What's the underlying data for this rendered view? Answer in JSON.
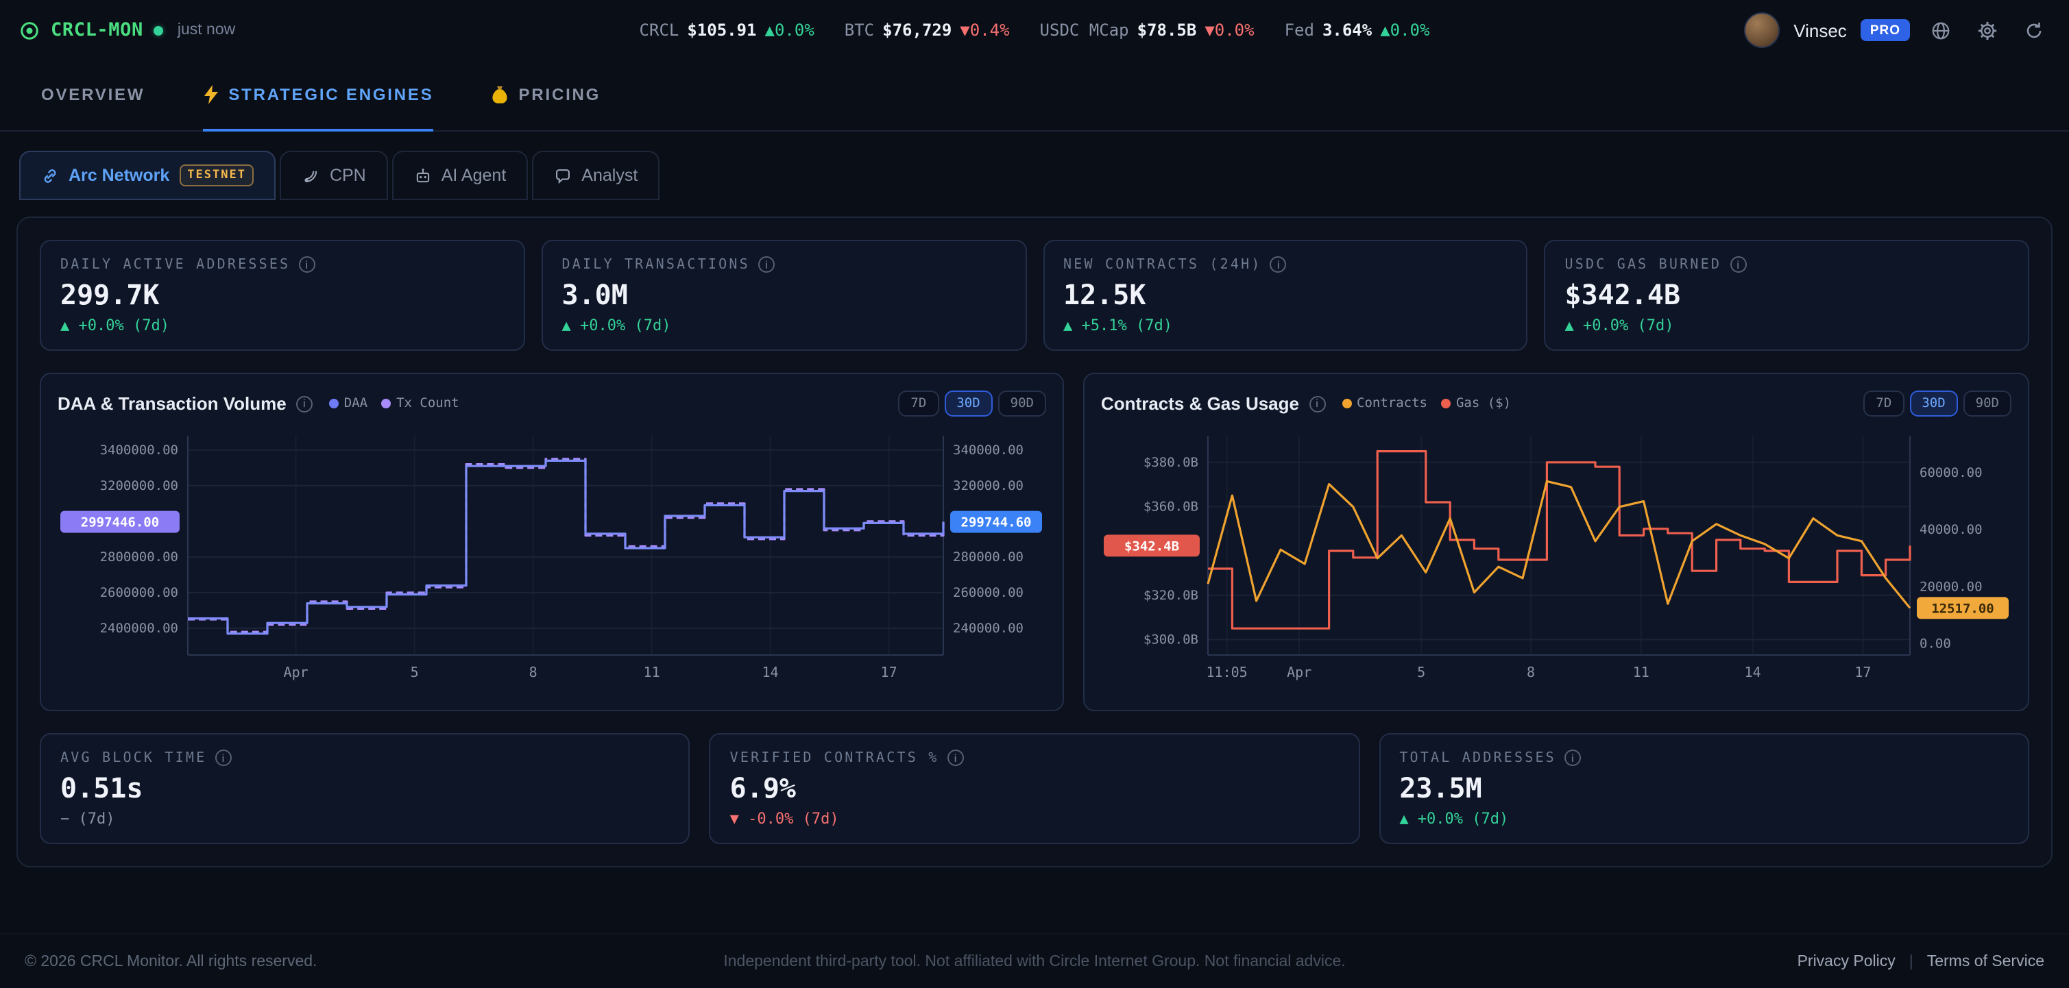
{
  "header": {
    "app_name": "CRCL-MON",
    "status": "just now",
    "user": {
      "name": "Vinsec",
      "badge": "PRO"
    },
    "ticker": [
      {
        "label": "CRCL",
        "value": "$105.91",
        "change": "▲0.0%",
        "dir": "up"
      },
      {
        "label": "BTC",
        "value": "$76,729",
        "change": "▼0.4%",
        "dir": "down"
      },
      {
        "label": "USDC MCap",
        "value": "$78.5B",
        "change": "▼0.0%",
        "dir": "down"
      },
      {
        "label": "Fed",
        "value": "3.64%",
        "change": "▲0.0%",
        "dir": "up"
      }
    ]
  },
  "icons": {
    "logo": "circle-dot",
    "live": "green-dot",
    "strategic": "lightning-bolt",
    "pricing": "money-bag",
    "arc": "chain-link",
    "cpn": "satellite-dish",
    "ai": "robot",
    "analyst": "chat-bubble",
    "info": "info-circle",
    "globe": "globe",
    "settings": "gear",
    "refresh": "refresh-arrow"
  },
  "nav": {
    "tabs": [
      {
        "label": "OVERVIEW",
        "active": false
      },
      {
        "label": "STRATEGIC ENGINES",
        "active": true
      },
      {
        "label": "PRICING",
        "active": false
      }
    ]
  },
  "subtabs": [
    {
      "label": "Arc Network",
      "badge": "TESTNET",
      "active": true
    },
    {
      "label": "CPN",
      "active": false
    },
    {
      "label": "AI Agent",
      "active": false
    },
    {
      "label": "Analyst",
      "active": false
    }
  ],
  "stats_top": [
    {
      "label": "DAILY ACTIVE ADDRESSES",
      "value": "299.7K",
      "change": "▲ +0.0% (7d)",
      "dir": "up"
    },
    {
      "label": "DAILY TRANSACTIONS",
      "value": "3.0M",
      "change": "▲ +0.0% (7d)",
      "dir": "up"
    },
    {
      "label": "NEW CONTRACTS (24H)",
      "value": "12.5K",
      "change": "▲ +5.1% (7d)",
      "dir": "up"
    },
    {
      "label": "USDC GAS BURNED",
      "value": "$342.4B",
      "change": "▲ +0.0% (7d)",
      "dir": "up"
    }
  ],
  "stats_bottom": [
    {
      "label": "AVG BLOCK TIME",
      "value": "0.51s",
      "change": "− (7d)",
      "dir": "flat"
    },
    {
      "label": "VERIFIED CONTRACTS %",
      "value": "6.9%",
      "change": "▼ -0.0% (7d)",
      "dir": "down"
    },
    {
      "label": "TOTAL ADDRESSES",
      "value": "23.5M",
      "change": "▲ +0.0% (7d)",
      "dir": "up"
    }
  ],
  "chart_data": [
    {
      "type": "line",
      "title": "DAA & Transaction Volume",
      "legend": [
        {
          "label": "DAA",
          "color": "#6f7bf7"
        },
        {
          "label": "Tx Count",
          "color": "#a78bfa"
        }
      ],
      "ranges": [
        "7D",
        "30D",
        "90D"
      ],
      "active_range": "30D",
      "x_ticks": {
        "labels": [
          "Apr",
          "5",
          "8",
          "11",
          "14",
          "17"
        ],
        "fractions": [
          0.143,
          0.3,
          0.457,
          0.614,
          0.771,
          0.928
        ]
      },
      "left_axis": {
        "lim": [
          2250000,
          3480000
        ],
        "ticks": [
          {
            "v": 3400000,
            "label": "3400000.00"
          },
          {
            "v": 3200000,
            "label": "3200000.00"
          },
          {
            "v": 2800000,
            "label": "2800000.00"
          },
          {
            "v": 2600000,
            "label": "2600000.00"
          },
          {
            "v": 2400000,
            "label": "2400000.00"
          }
        ],
        "badge": {
          "v": 2997446.0,
          "label": "2997446.00",
          "bg": "#8b7bf4",
          "fg": "#ffffff"
        }
      },
      "right_axis": {
        "lim": [
          225000,
          348000
        ],
        "ticks": [
          {
            "v": 340000,
            "label": "340000.00"
          },
          {
            "v": 320000,
            "label": "320000.00"
          },
          {
            "v": 280000,
            "label": "280000.00"
          },
          {
            "v": 260000,
            "label": "260000.00"
          },
          {
            "v": 240000,
            "label": "240000.00"
          }
        ],
        "badge": {
          "v": 299744.6,
          "label": "299744.60",
          "bg": "#3b82f6",
          "fg": "#ffffff"
        }
      },
      "series": [
        {
          "name": "Tx Count",
          "axis": "left",
          "color": "#a78bfa",
          "dash": true,
          "step": true,
          "values": [
            2450000,
            2380000,
            2420000,
            2550000,
            2510000,
            2600000,
            2630000,
            3320000,
            3300000,
            3350000,
            2920000,
            2860000,
            3020000,
            3100000,
            2900000,
            3180000,
            2950000,
            3000000,
            2920000,
            2997446
          ]
        },
        {
          "name": "DAA",
          "axis": "right",
          "color": "#7d8cf8",
          "dash": false,
          "step": true,
          "values": [
            245500,
            237000,
            243000,
            254000,
            252000,
            259000,
            264000,
            331000,
            331000,
            334000,
            293000,
            285000,
            303000,
            309000,
            291000,
            317000,
            296000,
            299000,
            293000,
            299744.6
          ]
        }
      ]
    },
    {
      "type": "line",
      "title": "Contracts & Gas Usage",
      "legend": [
        {
          "label": "Contracts",
          "color": "#f0a32f"
        },
        {
          "label": "Gas ($)",
          "color": "#ef5f4e"
        }
      ],
      "ranges": [
        "7D",
        "30D",
        "90D"
      ],
      "active_range": "30D",
      "x_ticks": {
        "labels": [
          "11:05",
          "Apr",
          "5",
          "8",
          "11",
          "14",
          "17"
        ],
        "fractions": [
          0.027,
          0.13,
          0.304,
          0.46,
          0.617,
          0.776,
          0.933
        ]
      },
      "left_axis": {
        "lim": [
          293,
          392
        ],
        "ticks": [
          {
            "v": 380,
            "label": "$380.0B"
          },
          {
            "v": 360,
            "label": "$360.0B"
          },
          {
            "v": 320,
            "label": "$320.0B"
          },
          {
            "v": 300,
            "label": "$300.0B"
          }
        ],
        "badge": {
          "v": 342.4,
          "label": "$342.4B",
          "bg": "#e2574b",
          "fg": "#ffffff"
        }
      },
      "right_axis": {
        "lim": [
          -4000,
          73000
        ],
        "ticks": [
          {
            "v": 60000,
            "label": "60000.00"
          },
          {
            "v": 40000,
            "label": "40000.00"
          },
          {
            "v": 20000,
            "label": "20000.00"
          },
          {
            "v": 0,
            "label": "0.00"
          }
        ],
        "badge": {
          "v": 12517,
          "label": "12517.00",
          "bg": "#f2a93b",
          "fg": "#3a2a0a"
        }
      },
      "series": [
        {
          "name": "Gas ($)",
          "axis": "left",
          "color": "#ef5f4e",
          "dash": false,
          "step": true,
          "values": [
            332,
            305,
            305,
            305,
            305,
            340,
            337,
            385,
            385,
            362,
            345,
            341,
            336,
            336,
            380,
            380,
            378,
            347,
            350,
            348,
            331,
            345,
            341,
            340,
            326,
            326,
            340,
            329,
            336,
            342.4
          ]
        },
        {
          "name": "Contracts",
          "axis": "right",
          "color": "#f0a32f",
          "dash": false,
          "step": false,
          "values": [
            21000,
            52000,
            15000,
            33000,
            28000,
            56000,
            48000,
            30000,
            38000,
            25000,
            44000,
            18000,
            27000,
            23000,
            57000,
            55000,
            36000,
            48000,
            50000,
            14000,
            36000,
            42000,
            38000,
            35000,
            30000,
            44000,
            38000,
            36000,
            23000,
            12517
          ]
        }
      ]
    }
  ],
  "footer": {
    "copyright": "© 2026 CRCL Monitor. All rights reserved.",
    "disclaimer": "Independent third-party tool. Not affiliated with Circle Internet Group. Not financial advice.",
    "links": [
      "Privacy Policy",
      "Terms of Service"
    ]
  }
}
